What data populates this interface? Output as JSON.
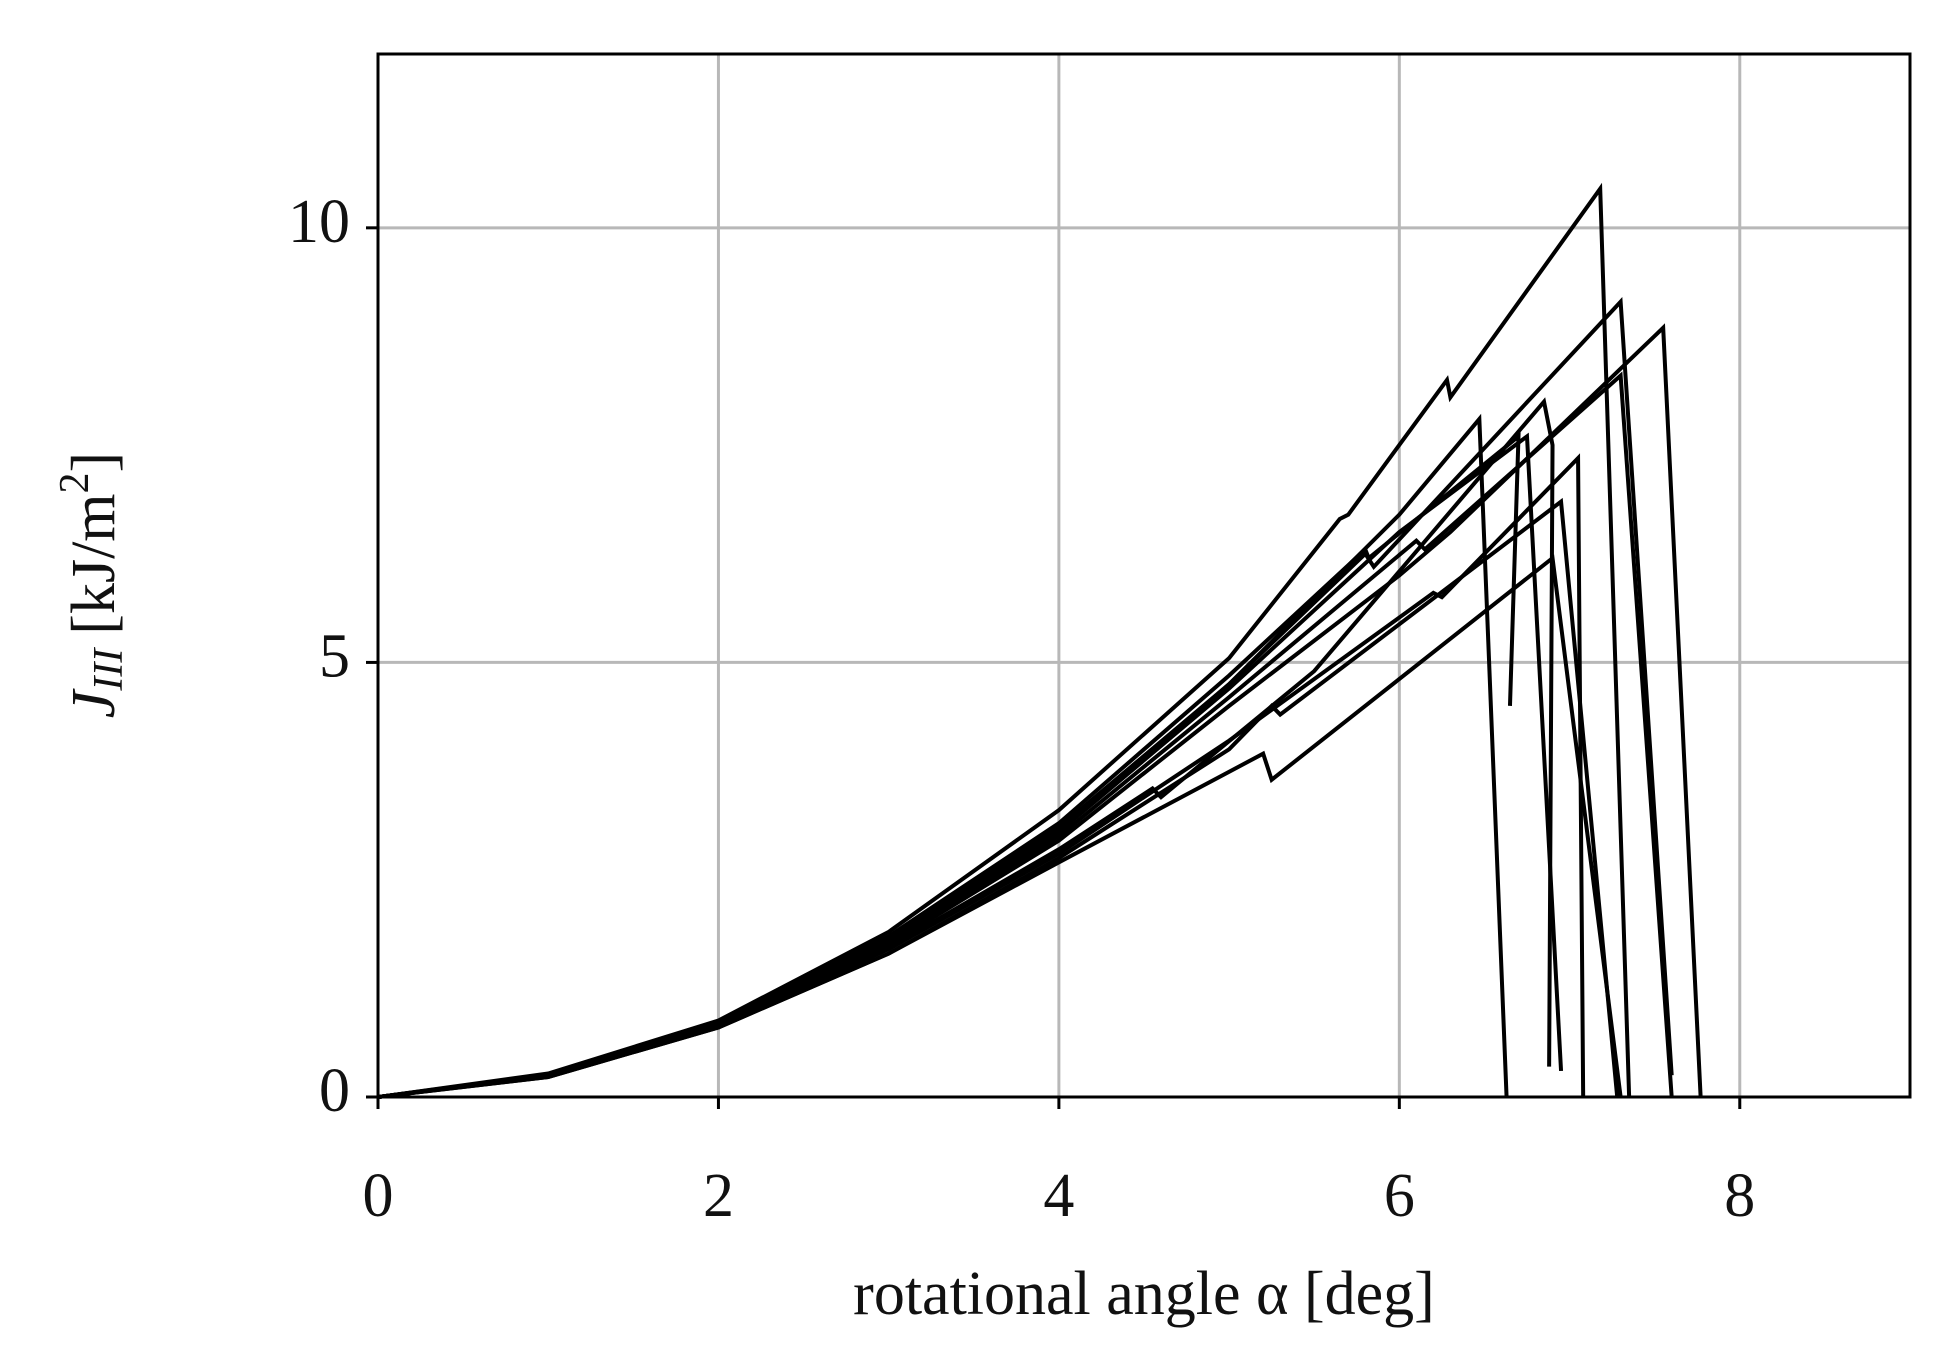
{
  "chart_data": {
    "type": "line",
    "xlabel": "rotational angle α [deg]",
    "ylabel": {
      "symbol": "J",
      "subscript": "III",
      "unit": "[kJ/m",
      "unit_power": "2",
      "unit_close": "]"
    },
    "xlim": [
      0,
      9
    ],
    "ylim": [
      0,
      12
    ],
    "xticks": [
      0,
      2,
      4,
      6,
      8
    ],
    "yticks": [
      0,
      5,
      10
    ],
    "grid": true,
    "color": "#000000",
    "series": [
      {
        "x": [
          0,
          1,
          2,
          3,
          4,
          5,
          5.65,
          5.7,
          6.28,
          6.3,
          7.18,
          7.35
        ],
        "values": [
          0,
          0.27,
          0.88,
          1.9,
          3.3,
          5.05,
          6.65,
          6.7,
          8.25,
          8.05,
          10.45,
          0
        ]
      },
      {
        "x": [
          0,
          1,
          2,
          3,
          4,
          5,
          5.8,
          5.85,
          7.3,
          7.6
        ],
        "values": [
          0,
          0.25,
          0.85,
          1.8,
          3.05,
          4.75,
          6.25,
          6.1,
          9.15,
          0.25
        ]
      },
      {
        "x": [
          0,
          1,
          2,
          3,
          4,
          5,
          6,
          6.3,
          7.55,
          7.77
        ],
        "values": [
          0,
          0.25,
          0.84,
          1.75,
          2.95,
          4.5,
          6.0,
          6.5,
          8.85,
          0
        ]
      },
      {
        "x": [
          0,
          1,
          2,
          3,
          4,
          5,
          6,
          6.47,
          6.63
        ],
        "values": [
          0,
          0.26,
          0.86,
          1.82,
          3.1,
          4.75,
          6.7,
          7.8,
          0
        ]
      },
      {
        "x": [
          0,
          1,
          2,
          3,
          4,
          4.55,
          4.6,
          5.5,
          6.85,
          6.9,
          6.88
        ],
        "values": [
          0,
          0.24,
          0.83,
          1.72,
          2.85,
          3.55,
          3.45,
          4.9,
          8.0,
          7.5,
          0.35
        ]
      },
      {
        "x": [
          0,
          1,
          2,
          3,
          4,
          5,
          6.2,
          6.25,
          7.05,
          7.08
        ],
        "values": [
          0,
          0.24,
          0.82,
          1.7,
          2.8,
          4.1,
          5.8,
          5.75,
          7.35,
          0
        ]
      },
      {
        "x": [
          0,
          1,
          2,
          3,
          4,
          5,
          5.8,
          5.82,
          6.7,
          6.65
        ],
        "values": [
          0,
          0.26,
          0.87,
          1.85,
          3.15,
          4.85,
          6.3,
          6.2,
          7.6,
          4.5
        ]
      },
      {
        "x": [
          0,
          1,
          2,
          3,
          4,
          5,
          5.25,
          5.3,
          6.95,
          7.28
        ],
        "values": [
          0,
          0.23,
          0.8,
          1.65,
          2.75,
          4.0,
          4.5,
          4.4,
          6.85,
          0
        ]
      },
      {
        "x": [
          0,
          1,
          2,
          3,
          4,
          5.2,
          5.25,
          6.9,
          7.3
        ],
        "values": [
          0,
          0.23,
          0.8,
          1.65,
          2.7,
          3.95,
          3.65,
          6.2,
          0
        ]
      },
      {
        "x": [
          0,
          1,
          2,
          3,
          4,
          5,
          6.1,
          6.15,
          7.3,
          7.6
        ],
        "values": [
          0,
          0.25,
          0.84,
          1.78,
          3.0,
          4.6,
          6.4,
          6.3,
          8.3,
          0
        ]
      },
      {
        "x": [
          0,
          1,
          2,
          3,
          4,
          5,
          6,
          6.75,
          6.95
        ],
        "values": [
          0,
          0.25,
          0.85,
          1.8,
          3.05,
          4.7,
          6.5,
          7.6,
          0.3
        ]
      }
    ]
  }
}
